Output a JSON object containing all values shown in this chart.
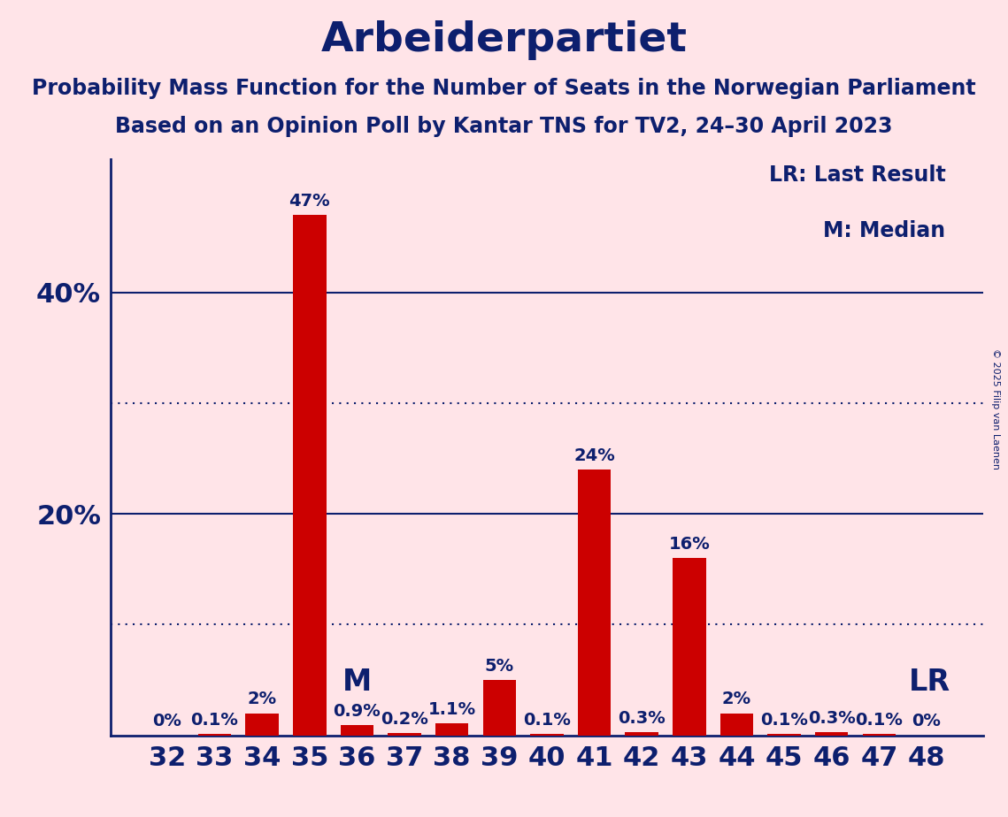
{
  "title": "Arbeiderpartiet",
  "subtitle_line1": "Probability Mass Function for the Number of Seats in the Norwegian Parliament",
  "subtitle_line2": "Based on an Opinion Poll by Kantar TNS for TV2, 24–30 April 2023",
  "copyright": "© 2025 Filip van Laenen",
  "categories": [
    32,
    33,
    34,
    35,
    36,
    37,
    38,
    39,
    40,
    41,
    42,
    43,
    44,
    45,
    46,
    47,
    48
  ],
  "values": [
    0.0,
    0.1,
    2.0,
    47.0,
    0.9,
    0.2,
    1.1,
    5.0,
    0.1,
    24.0,
    0.3,
    16.0,
    2.0,
    0.1,
    0.3,
    0.1,
    0.0
  ],
  "labels": [
    "0%",
    "0.1%",
    "2%",
    "47%",
    "0.9%",
    "0.2%",
    "1.1%",
    "5%",
    "0.1%",
    "24%",
    "0.3%",
    "16%",
    "2%",
    "0.1%",
    "0.3%",
    "0.1%",
    "0%"
  ],
  "bar_color": "#CC0000",
  "background_color": "#FFE4E8",
  "text_color": "#0D1F6E",
  "median_index": 3,
  "lr_index": 16,
  "yticks": [
    20,
    40
  ],
  "dotted_lines": [
    10,
    30
  ],
  "solid_lines": [
    20,
    40
  ],
  "ylim": [
    0,
    52
  ],
  "legend_lr": "LR: Last Result",
  "legend_m": "M: Median",
  "title_fontsize": 34,
  "subtitle_fontsize": 17,
  "bar_label_fontsize": 14,
  "tick_label_fontsize": 22,
  "annotation_fontsize": 24
}
